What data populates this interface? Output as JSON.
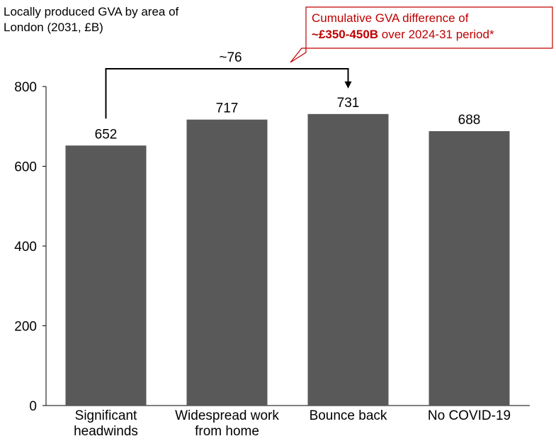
{
  "chart_data": {
    "type": "bar",
    "title": "Locally produced GVA by area of London (2031, £B)",
    "categories": [
      "Significant headwinds",
      "Widespread work from home",
      "Bounce back",
      "No COVID-19"
    ],
    "values": [
      652,
      717,
      731,
      688
    ],
    "color": "#595959",
    "ylim": [
      0,
      800
    ],
    "yticks": [
      0,
      200,
      400,
      600,
      800
    ],
    "grid": false,
    "annotations": {
      "difference": "~76",
      "callout": [
        "Cumulative GVA difference of",
        "~£350-450B",
        "over 2024-31 period*"
      ],
      "callout_color": "#c00000"
    }
  }
}
